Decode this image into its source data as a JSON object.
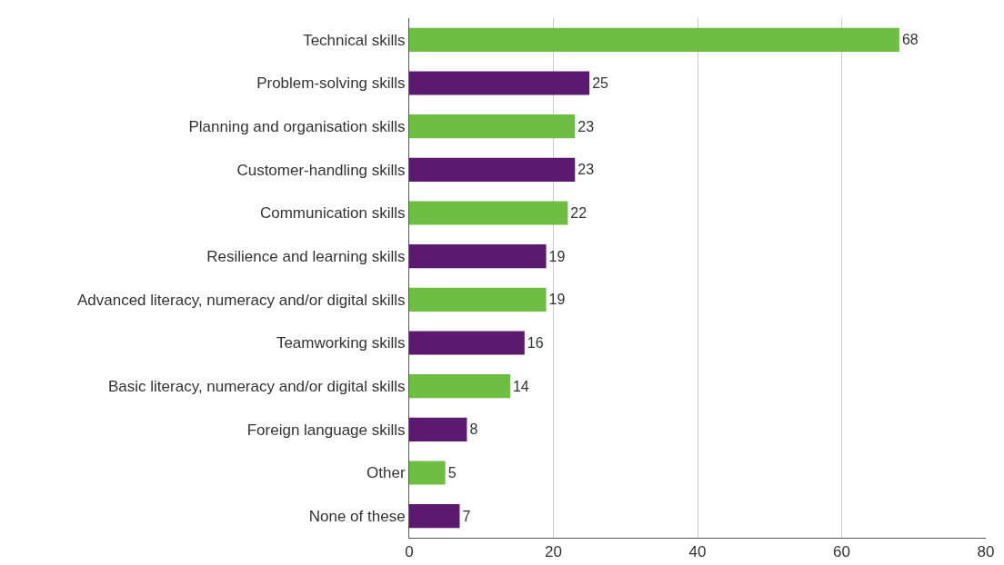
{
  "chart_data": {
    "type": "bar",
    "orientation": "horizontal",
    "categories": [
      "Technical skills",
      "Problem-solving skills",
      "Planning and organisation skills",
      "Customer-handling skills",
      "Communication skills",
      "Resilience and learning skills",
      "Advanced literacy, numeracy and/or digital skills",
      "Teamworking skills",
      "Basic literacy, numeracy and/or digital skills",
      "Foreign language skills",
      "Other",
      "None of these"
    ],
    "values": [
      68,
      25,
      23,
      23,
      22,
      19,
      19,
      16,
      14,
      8,
      5,
      7
    ],
    "colors": [
      "#6fbe44",
      "#5c1a6e",
      "#6fbe44",
      "#5c1a6e",
      "#6fbe44",
      "#5c1a6e",
      "#6fbe44",
      "#5c1a6e",
      "#6fbe44",
      "#5c1a6e",
      "#6fbe44",
      "#5c1a6e"
    ],
    "xlim": [
      0,
      80
    ],
    "xticks": [
      0,
      20,
      40,
      60,
      80
    ],
    "grid": "x",
    "data_labels": true
  }
}
